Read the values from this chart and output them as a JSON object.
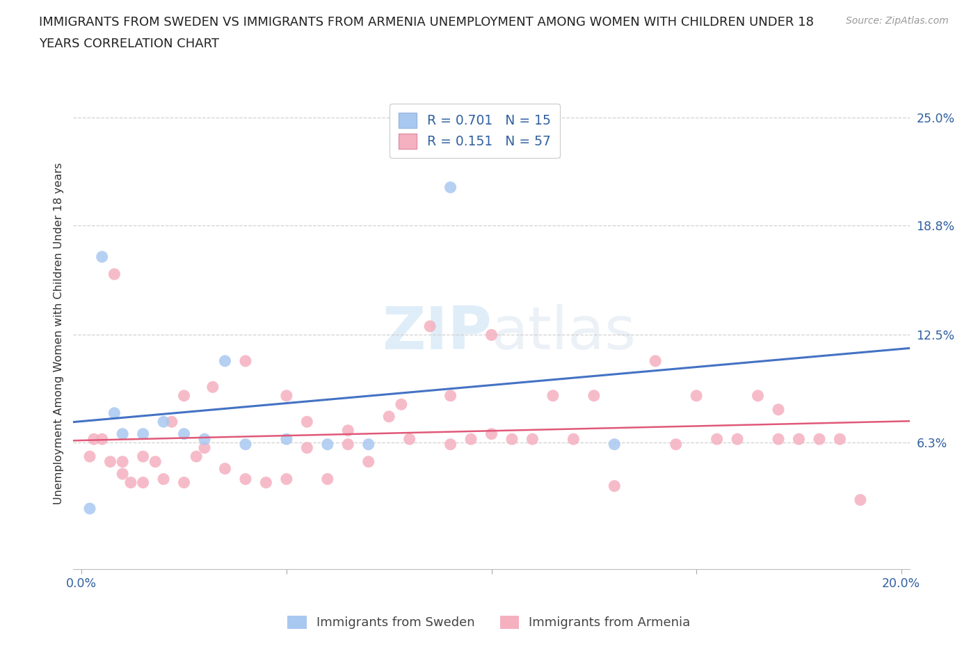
{
  "title_line1": "IMMIGRANTS FROM SWEDEN VS IMMIGRANTS FROM ARMENIA UNEMPLOYMENT AMONG WOMEN WITH CHILDREN UNDER 18",
  "title_line2": "YEARS CORRELATION CHART",
  "source": "Source: ZipAtlas.com",
  "ylabel": "Unemployment Among Women with Children Under 18 years",
  "xlim": [
    -0.002,
    0.202
  ],
  "ylim": [
    -0.01,
    0.262
  ],
  "xticks": [
    0.0,
    0.05,
    0.1,
    0.15,
    0.2
  ],
  "xticklabels": [
    "0.0%",
    "",
    "",
    "",
    "20.0%"
  ],
  "yticks_right": [
    0.063,
    0.125,
    0.188,
    0.25
  ],
  "ytick_right_labels": [
    "6.3%",
    "12.5%",
    "18.8%",
    "25.0%"
  ],
  "sweden_fill_color": "#a8c8f0",
  "armenia_fill_color": "#f5b0c0",
  "sweden_line_color": "#4472c4",
  "armenia_line_color": "#e05878",
  "R_sweden": "0.701",
  "N_sweden": "15",
  "R_armenia": "0.151",
  "N_armenia": "57",
  "legend_label_sweden": "Immigrants from Sweden",
  "legend_label_armenia": "Immigrants from Armenia",
  "watermark_zip": "ZIP",
  "watermark_atlas": "atlas",
  "background_color": "#ffffff",
  "grid_color": "#d0d0d0",
  "sweden_points_x": [
    0.002,
    0.005,
    0.008,
    0.01,
    0.015,
    0.02,
    0.025,
    0.03,
    0.035,
    0.04,
    0.05,
    0.06,
    0.07,
    0.09,
    0.13
  ],
  "sweden_points_y": [
    0.025,
    0.17,
    0.08,
    0.068,
    0.068,
    0.075,
    0.068,
    0.065,
    0.11,
    0.062,
    0.065,
    0.062,
    0.062,
    0.21,
    0.062
  ],
  "armenia_points_x": [
    0.002,
    0.003,
    0.005,
    0.007,
    0.008,
    0.01,
    0.01,
    0.012,
    0.015,
    0.015,
    0.018,
    0.02,
    0.022,
    0.025,
    0.025,
    0.028,
    0.03,
    0.032,
    0.035,
    0.04,
    0.04,
    0.045,
    0.05,
    0.05,
    0.055,
    0.055,
    0.06,
    0.065,
    0.065,
    0.07,
    0.075,
    0.078,
    0.08,
    0.085,
    0.09,
    0.09,
    0.095,
    0.1,
    0.1,
    0.105,
    0.11,
    0.115,
    0.12,
    0.125,
    0.13,
    0.14,
    0.145,
    0.15,
    0.155,
    0.16,
    0.165,
    0.17,
    0.17,
    0.175,
    0.18,
    0.185,
    0.19
  ],
  "armenia_points_y": [
    0.055,
    0.065,
    0.065,
    0.052,
    0.16,
    0.045,
    0.052,
    0.04,
    0.04,
    0.055,
    0.052,
    0.042,
    0.075,
    0.04,
    0.09,
    0.055,
    0.06,
    0.095,
    0.048,
    0.042,
    0.11,
    0.04,
    0.042,
    0.09,
    0.06,
    0.075,
    0.042,
    0.07,
    0.062,
    0.052,
    0.078,
    0.085,
    0.065,
    0.13,
    0.062,
    0.09,
    0.065,
    0.068,
    0.125,
    0.065,
    0.065,
    0.09,
    0.065,
    0.09,
    0.038,
    0.11,
    0.062,
    0.09,
    0.065,
    0.065,
    0.09,
    0.065,
    0.082,
    0.065,
    0.065,
    0.065,
    0.03
  ]
}
